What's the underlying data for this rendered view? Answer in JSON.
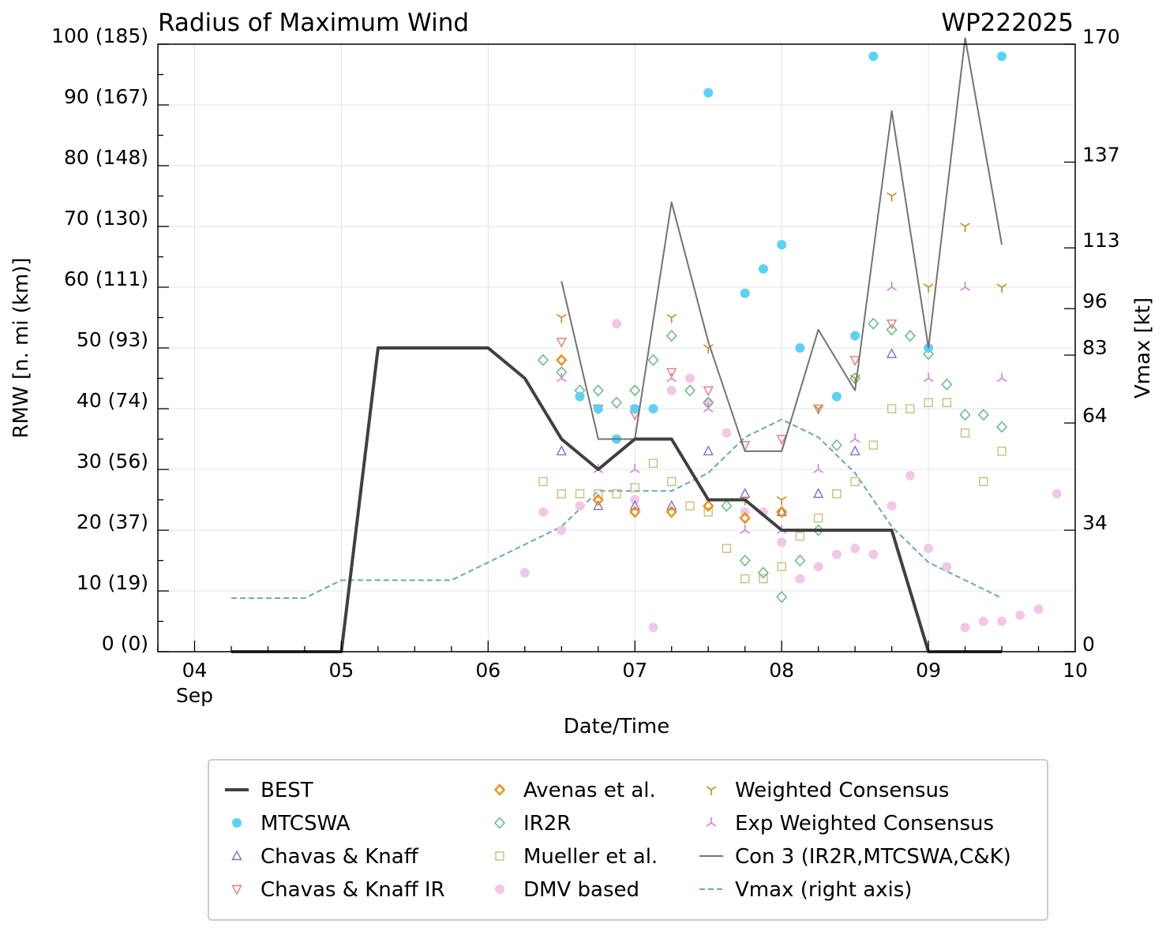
{
  "chart_data": {
    "type": "scatter",
    "title": "Radius of Maximum Wind",
    "storm_id": "WP222025",
    "xlabel": "Date/Time",
    "ylabel": "RMW [n. mi (km)]",
    "y2label": "Vmax [kt]",
    "xlim": [
      4.0,
      10.0
    ],
    "xlim_note": "days of September; axis starts at 03.75",
    "x_range": [
      3.75,
      10.0
    ],
    "ylim": [
      0,
      100
    ],
    "y2lim": [
      0,
      170
    ],
    "x_ticks": [
      {
        "value": 4,
        "label": "04",
        "sublabel": "Sep"
      },
      {
        "value": 5,
        "label": "05",
        "sublabel": ""
      },
      {
        "value": 6,
        "label": "06",
        "sublabel": ""
      },
      {
        "value": 7,
        "label": "07",
        "sublabel": ""
      },
      {
        "value": 8,
        "label": "08",
        "sublabel": ""
      },
      {
        "value": 9,
        "label": "09",
        "sublabel": ""
      },
      {
        "value": 10,
        "label": "10",
        "sublabel": ""
      }
    ],
    "y_ticks": [
      {
        "value": 0,
        "label": "0 (0)"
      },
      {
        "value": 10,
        "label": "10 (19)"
      },
      {
        "value": 20,
        "label": "20 (37)"
      },
      {
        "value": 30,
        "label": "30 (56)"
      },
      {
        "value": 40,
        "label": "40 (74)"
      },
      {
        "value": 50,
        "label": "50 (93)"
      },
      {
        "value": 60,
        "label": "60 (111)"
      },
      {
        "value": 70,
        "label": "70 (130)"
      },
      {
        "value": 80,
        "label": "80 (148)"
      },
      {
        "value": 90,
        "label": "90 (167)"
      },
      {
        "value": 100,
        "label": "100 (185)"
      }
    ],
    "y2_ticks": [
      {
        "value": 0,
        "label": "0"
      },
      {
        "value": 34,
        "label": "34"
      },
      {
        "value": 64,
        "label": "64"
      },
      {
        "value": 83,
        "label": "83"
      },
      {
        "value": 96,
        "label": "96"
      },
      {
        "value": 113,
        "label": "113"
      },
      {
        "value": 137,
        "label": "137"
      },
      {
        "value": 170,
        "label": "170"
      }
    ],
    "series": [
      {
        "name": "BEST",
        "marker": "line",
        "color": "#404040",
        "x": [
          4.25,
          5.0,
          5.25,
          6.0,
          6.25,
          6.5,
          6.75,
          7.0,
          7.25,
          7.5,
          7.75,
          8.0,
          8.25,
          8.5,
          8.75,
          9.0,
          9.25,
          9.5
        ],
        "y": [
          0,
          0,
          50,
          50,
          45,
          35,
          30,
          35,
          35,
          25,
          25,
          20,
          20,
          20,
          20,
          0,
          0,
          0
        ]
      },
      {
        "name": "MTCSWA",
        "marker": "circle",
        "color": "#5bd2f5",
        "x": [
          6.625,
          6.75,
          6.875,
          7.0,
          7.125,
          7.5,
          7.75,
          7.875,
          8.0,
          8.125,
          8.375,
          8.5,
          8.625,
          9.0,
          9.5
        ],
        "y": [
          42,
          40,
          35,
          40,
          40,
          92,
          59,
          63,
          67,
          50,
          42,
          52,
          98,
          50,
          98
        ]
      },
      {
        "name": "Chavas & Knaff",
        "marker": "triangle-up",
        "color": "#7b6fdc",
        "x": [
          6.5,
          6.75,
          7.0,
          7.25,
          7.5,
          7.75,
          8.0,
          8.25,
          8.5,
          8.75
        ],
        "y": [
          33,
          24,
          24,
          24,
          33,
          26,
          23,
          26,
          33,
          49
        ]
      },
      {
        "name": "Chavas & Knaff IR",
        "marker": "triangle-down",
        "color": "#e8787a",
        "x": [
          6.5,
          6.75,
          7.0,
          7.25,
          7.5,
          7.75,
          8.0,
          8.25,
          8.5,
          8.75
        ],
        "y": [
          51,
          40,
          39,
          46,
          43,
          34,
          35,
          40,
          48,
          54
        ]
      },
      {
        "name": "Avenas et al.",
        "marker": "diamond",
        "color": "#e8901a",
        "x": [
          6.5,
          6.75,
          7.0,
          7.25,
          7.5,
          7.75,
          8.0
        ],
        "y": [
          48,
          25,
          23,
          23,
          24,
          22,
          23
        ]
      },
      {
        "name": "IR2R",
        "marker": "diamond-open",
        "color": "#5db57c",
        "x": [
          6.375,
          6.5,
          6.625,
          6.75,
          6.875,
          7.0,
          7.125,
          7.25,
          7.375,
          7.5,
          7.625,
          7.75,
          7.875,
          8.0,
          8.125,
          8.25,
          8.375,
          8.5,
          8.625,
          8.75,
          8.875,
          9.0,
          9.125,
          9.25,
          9.375,
          9.5
        ],
        "y": [
          48,
          46,
          43,
          43,
          41,
          43,
          48,
          52,
          43,
          41,
          24,
          15,
          13,
          9,
          15,
          20,
          34,
          45,
          54,
          53,
          52,
          49,
          44,
          39,
          39,
          37
        ]
      },
      {
        "name": "Mueller et al.",
        "marker": "square",
        "color": "#c8bf7e",
        "x": [
          6.375,
          6.5,
          6.625,
          6.75,
          6.875,
          7.0,
          7.125,
          7.25,
          7.375,
          7.5,
          7.625,
          7.75,
          7.875,
          8.0,
          8.125,
          8.25,
          8.375,
          8.5,
          8.625,
          8.75,
          8.875,
          9.0,
          9.125,
          9.25,
          9.375,
          9.5
        ],
        "y": [
          28,
          26,
          26,
          26,
          26,
          27,
          31,
          28,
          24,
          23,
          17,
          12,
          12,
          14,
          19,
          22,
          26,
          28,
          34,
          40,
          40,
          41,
          41,
          36,
          28,
          33
        ]
      },
      {
        "name": "DMV based",
        "marker": "circle",
        "color": "#f0c8e6",
        "x": [
          6.25,
          6.375,
          6.5,
          6.625,
          6.875,
          7.0,
          7.125,
          7.25,
          7.375,
          7.5,
          7.625,
          7.75,
          7.875,
          8.0,
          8.125,
          8.25,
          8.375,
          8.5,
          8.625,
          8.75,
          8.875,
          9.0,
          9.125,
          9.25,
          9.375,
          9.5,
          9.625,
          9.75,
          9.875
        ],
        "y": [
          13,
          23,
          20,
          24,
          54,
          25,
          4,
          43,
          45,
          41,
          36,
          23,
          23,
          18,
          12,
          14,
          16,
          17,
          16,
          24,
          29,
          17,
          14,
          4,
          5,
          5,
          6,
          7,
          26
        ]
      },
      {
        "name": "Weighted Consensus",
        "marker": "tri-down",
        "color": "#c08a1e",
        "x": [
          6.5,
          6.75,
          7.0,
          7.25,
          7.5,
          7.75,
          8.0,
          8.25,
          8.5,
          8.75,
          9.0,
          9.25,
          9.5
        ],
        "y": [
          55,
          40,
          40,
          55,
          50,
          25,
          25,
          40,
          45,
          75,
          60,
          70,
          60
        ]
      },
      {
        "name": "Exp Weighted Consensus",
        "marker": "tri-up",
        "color": "#d07ed8",
        "x": [
          6.5,
          6.75,
          7.0,
          7.25,
          7.5,
          7.75,
          8.0,
          8.25,
          8.5,
          8.75,
          9.0,
          9.25,
          9.5
        ],
        "y": [
          45,
          30,
          30,
          45,
          40,
          20,
          20,
          30,
          35,
          60,
          45,
          60,
          45
        ]
      },
      {
        "name": "Con 3 (IR2R,MTCSWA,C&K)",
        "marker": "line",
        "color": "#737373",
        "x": [
          6.5,
          6.75,
          7.0,
          7.25,
          7.5,
          7.75,
          8.0,
          8.25,
          8.5,
          8.75,
          9.0,
          9.25,
          9.5
        ],
        "y": [
          61,
          35,
          35,
          74,
          51,
          33,
          33,
          53,
          43,
          89,
          50,
          101,
          67
        ]
      },
      {
        "name": "Vmax (right axis)",
        "marker": "dashed",
        "color": "#6aa8b5",
        "axis": "right",
        "x": [
          4.25,
          4.75,
          5.0,
          5.75,
          6.0,
          6.25,
          6.5,
          6.75,
          7.0,
          7.25,
          7.5,
          7.75,
          8.0,
          8.25,
          8.5,
          8.75,
          9.0,
          9.25,
          9.5
        ],
        "y": [
          15,
          15,
          20,
          20,
          25,
          30,
          35,
          45,
          45,
          45,
          50,
          60,
          65,
          60,
          50,
          35,
          25,
          20,
          15
        ]
      }
    ],
    "legend": {
      "position": "bottom",
      "columns": [
        [
          "BEST",
          "MTCSWA",
          "Chavas & Knaff",
          "Chavas & Knaff IR"
        ],
        [
          "Avenas et al.",
          "IR2R",
          "Mueller et al.",
          "DMV based"
        ],
        [
          "Weighted Consensus",
          "Exp Weighted Consensus",
          "Con 3 (IR2R,MTCSWA,C&K)",
          "Vmax (right axis)"
        ]
      ]
    },
    "grid": true
  }
}
